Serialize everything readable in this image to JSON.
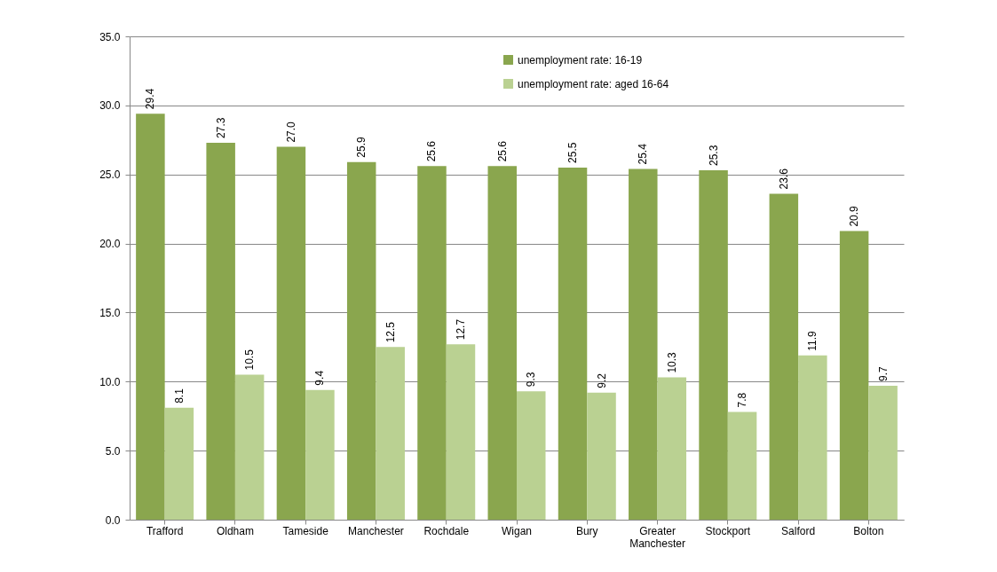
{
  "chart_data": {
    "type": "bar",
    "categories": [
      "Trafford",
      "Oldham",
      "Tameside",
      "Manchester",
      "Rochdale",
      "Wigan",
      "Bury",
      "Greater Manchester",
      "Stockport",
      "Salford",
      "Bolton"
    ],
    "series": [
      {
        "name": "unemployment rate: 16-19",
        "color": "#8aa64e",
        "values": [
          29.4,
          27.3,
          27.0,
          25.9,
          25.6,
          25.6,
          25.5,
          25.4,
          25.3,
          23.6,
          20.9
        ],
        "value_labels": [
          "29.4",
          "27.3",
          "27.0",
          "25.9",
          "25.6",
          "25.6",
          "25.5",
          "25.4",
          "25.3",
          "23.6",
          "20.9"
        ]
      },
      {
        "name": "unemployment rate: aged 16-64",
        "color": "#bad192",
        "values": [
          8.1,
          10.5,
          9.4,
          12.5,
          12.7,
          9.3,
          9.2,
          10.3,
          7.8,
          11.9,
          9.7
        ],
        "value_labels": [
          "8.1",
          "10.5",
          "9.4",
          "12.5",
          "12.7",
          "9.3",
          "9.2",
          "10.3",
          "7.8",
          "11.9",
          "9.7"
        ]
      }
    ],
    "ylim": [
      0,
      35
    ],
    "yticks": [
      {
        "value": 0,
        "label": "0.0"
      },
      {
        "value": 5,
        "label": "5.0"
      },
      {
        "value": 10,
        "label": "10.0"
      },
      {
        "value": 15,
        "label": "15.0"
      },
      {
        "value": 20,
        "label": "20.0"
      },
      {
        "value": 25,
        "label": "25.0"
      },
      {
        "value": 30,
        "label": "30.0"
      },
      {
        "value": 35,
        "label": "35.0"
      }
    ],
    "grid": "y",
    "legend": "top right"
  }
}
